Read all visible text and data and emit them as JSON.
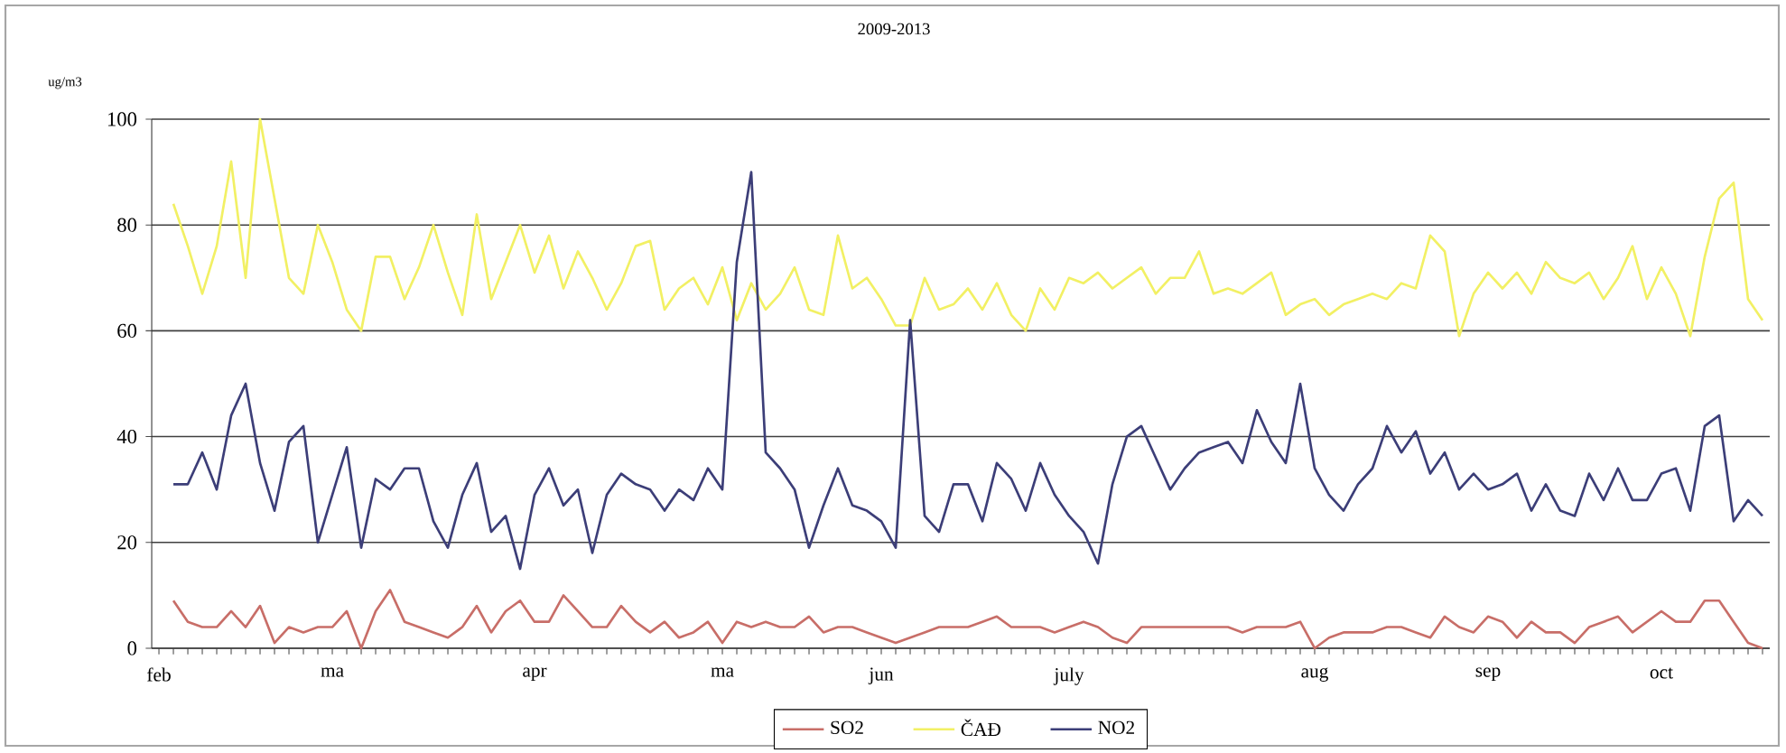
{
  "chart_data": {
    "type": "line",
    "title": "2009-2013",
    "ylabel": "ug/m3",
    "categories": [
      "feb",
      null,
      null,
      null,
      null,
      null,
      null,
      null,
      null,
      null,
      null,
      null,
      "ma",
      null,
      null,
      null,
      null,
      null,
      null,
      null,
      null,
      null,
      null,
      null,
      null,
      null,
      "apr",
      null,
      null,
      null,
      null,
      null,
      null,
      null,
      null,
      null,
      null,
      null,
      null,
      "ma",
      null,
      null,
      null,
      null,
      null,
      null,
      null,
      null,
      null,
      null,
      "jun",
      null,
      null,
      null,
      null,
      null,
      null,
      null,
      null,
      null,
      null,
      null,
      null,
      "july",
      null,
      null,
      null,
      null,
      null,
      null,
      null,
      null,
      null,
      null,
      null,
      null,
      null,
      null,
      null,
      null,
      "aug",
      null,
      null,
      null,
      null,
      null,
      null,
      null,
      null,
      null,
      null,
      null,
      "sep",
      null,
      null,
      null,
      null,
      null,
      null,
      null,
      null,
      null,
      null,
      null,
      "oct",
      null,
      null,
      null,
      null,
      null,
      null,
      null
    ],
    "series": [
      {
        "name": "SO2",
        "color": "#c86e68",
        "values": [
          null,
          9,
          5,
          4,
          4,
          7,
          4,
          8,
          1,
          4,
          3,
          4,
          4,
          7,
          0,
          7,
          11,
          5,
          4,
          3,
          2,
          4,
          8,
          3,
          7,
          9,
          5,
          5,
          10,
          7,
          4,
          4,
          8,
          5,
          3,
          5,
          2,
          3,
          5,
          1,
          5,
          4,
          5,
          4,
          4,
          6,
          3,
          4,
          4,
          3,
          2,
          1,
          2,
          3,
          4,
          4,
          4,
          5,
          6,
          4,
          4,
          4,
          3,
          4,
          5,
          4,
          2,
          1,
          4,
          4,
          4,
          4,
          4,
          4,
          4,
          3,
          4,
          4,
          4,
          5,
          0,
          2,
          3,
          3,
          3,
          4,
          4,
          3,
          2,
          6,
          4,
          3,
          6,
          5,
          2,
          5,
          3,
          3,
          1,
          4,
          5,
          6,
          3,
          5,
          7,
          5,
          5,
          9,
          9,
          5,
          1,
          0
        ]
      },
      {
        "name": "ČAĐ",
        "color": "#f2f064",
        "values": [
          null,
          84,
          76,
          67,
          76,
          92,
          70,
          100,
          85,
          70,
          67,
          80,
          73,
          64,
          60,
          74,
          74,
          66,
          72,
          80,
          71,
          63,
          82,
          66,
          73,
          80,
          71,
          78,
          68,
          75,
          70,
          64,
          69,
          76,
          77,
          64,
          68,
          70,
          65,
          72,
          62,
          69,
          64,
          67,
          72,
          64,
          63,
          78,
          68,
          70,
          66,
          61,
          61,
          70,
          64,
          65,
          68,
          64,
          69,
          63,
          60,
          68,
          64,
          70,
          69,
          71,
          68,
          70,
          72,
          67,
          70,
          70,
          75,
          67,
          68,
          67,
          69,
          71,
          63,
          65,
          66,
          63,
          65,
          66,
          67,
          66,
          69,
          68,
          78,
          75,
          59,
          67,
          71,
          68,
          71,
          67,
          73,
          70,
          69,
          71,
          66,
          70,
          76,
          66,
          72,
          67,
          59,
          74,
          85,
          88,
          66,
          62
        ]
      },
      {
        "name": "NO2",
        "color": "#3c3e78",
        "values": [
          null,
          31,
          31,
          37,
          30,
          44,
          50,
          35,
          26,
          39,
          42,
          20,
          29,
          38,
          19,
          32,
          30,
          34,
          34,
          24,
          19,
          29,
          35,
          22,
          25,
          15,
          29,
          34,
          27,
          30,
          18,
          29,
          33,
          31,
          30,
          26,
          30,
          28,
          34,
          30,
          73,
          90,
          37,
          34,
          30,
          19,
          27,
          34,
          27,
          26,
          24,
          19,
          62,
          25,
          22,
          31,
          31,
          24,
          35,
          32,
          26,
          35,
          29,
          25,
          22,
          16,
          31,
          40,
          42,
          36,
          30,
          34,
          37,
          38,
          39,
          35,
          45,
          39,
          35,
          50,
          34,
          29,
          26,
          31,
          34,
          42,
          37,
          41,
          33,
          37,
          30,
          33,
          30,
          31,
          33,
          26,
          31,
          26,
          25,
          33,
          28,
          34,
          28,
          28,
          33,
          34,
          26,
          42,
          44,
          24,
          28,
          25
        ]
      }
    ],
    "ylim": [
      0,
      100
    ],
    "yticks": [
      0,
      20,
      40,
      60,
      80,
      100
    ],
    "grid": "y",
    "legend": "bottom"
  }
}
